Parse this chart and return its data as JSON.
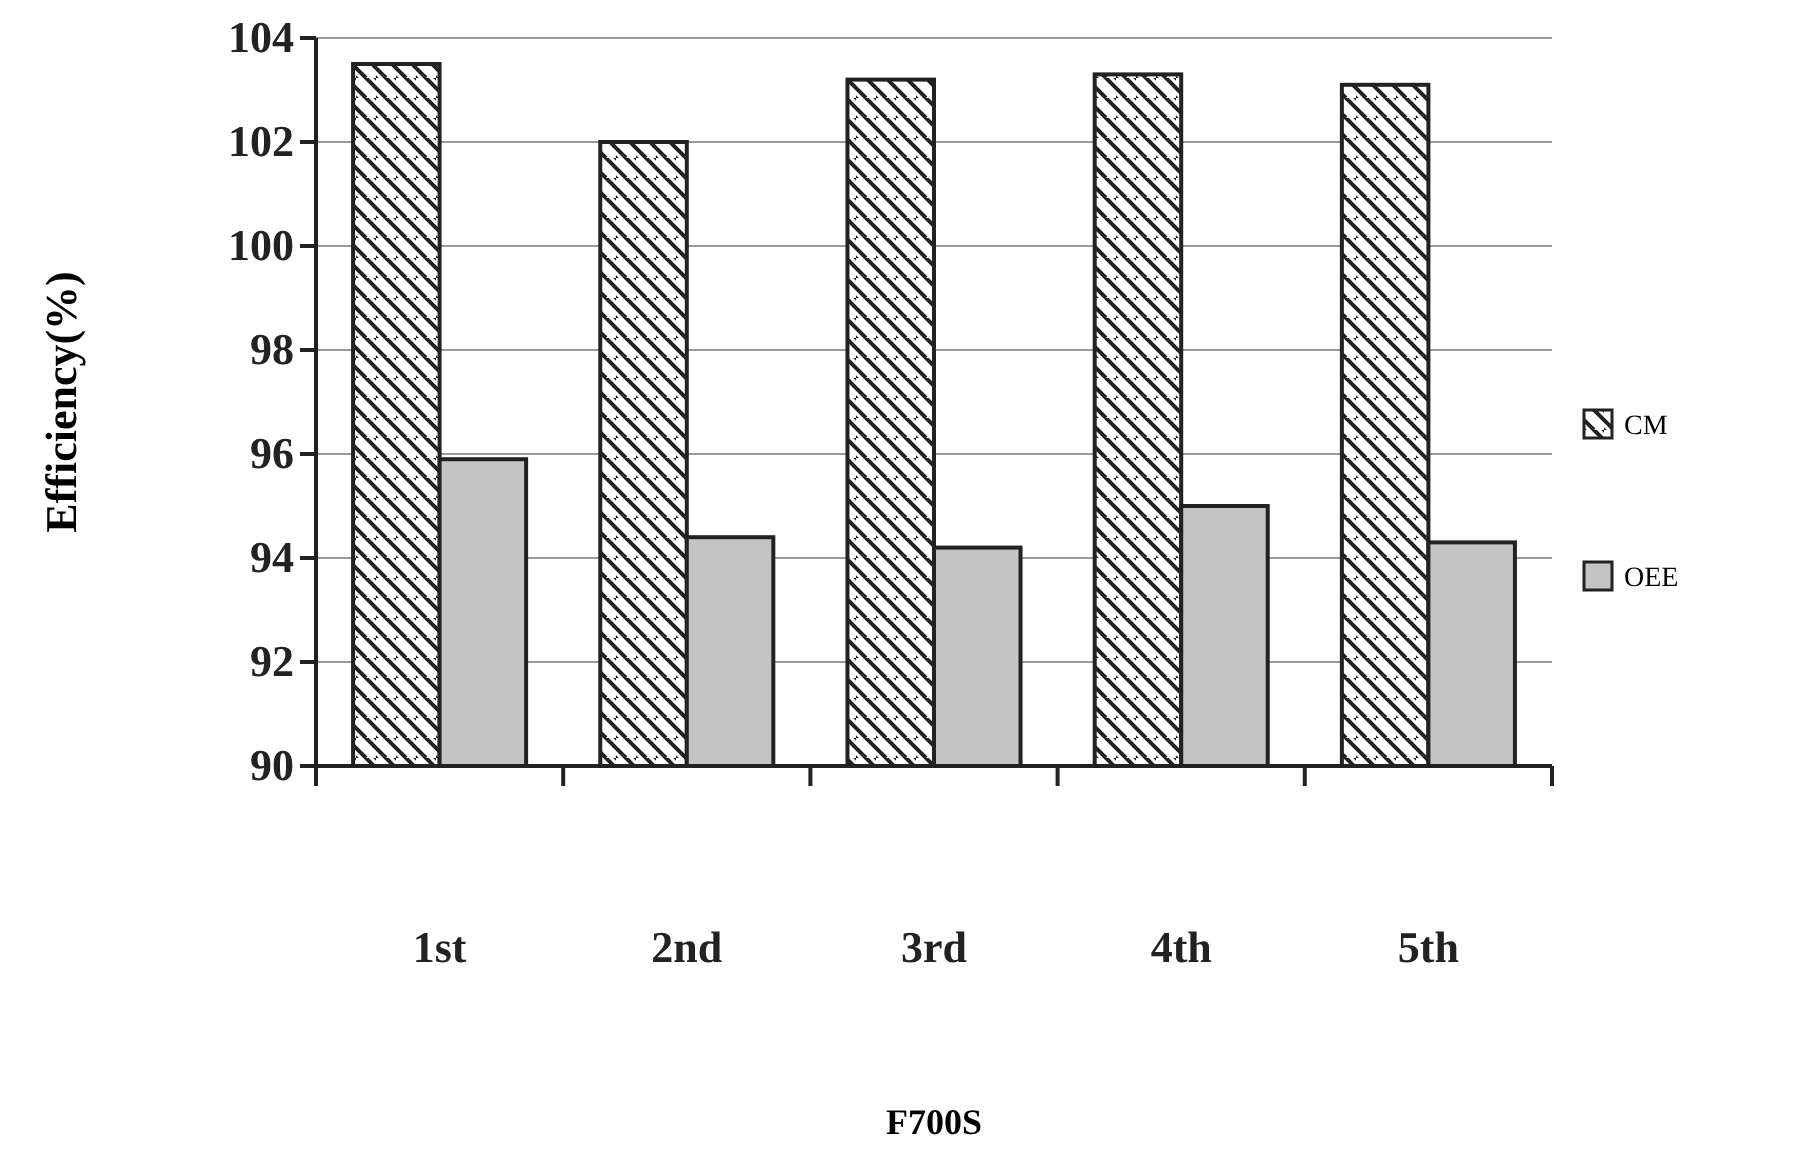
{
  "chart_data": {
    "type": "bar",
    "xlabel": "F700S",
    "ylabel": "Efficiency(%)",
    "categories": [
      "1st",
      "2nd",
      "3rd",
      "4th",
      "5th"
    ],
    "series": [
      {
        "name": "CM",
        "color": "#222222",
        "values": [
          103.5,
          102.0,
          103.2,
          103.3,
          103.1
        ]
      },
      {
        "name": "OEE",
        "color": "#c4c4c4",
        "values": [
          95.9,
          94.4,
          94.2,
          95.0,
          94.3
        ]
      }
    ],
    "ylim": [
      90,
      104
    ],
    "yticks": [
      90,
      92,
      94,
      96,
      98,
      100,
      102,
      104
    ],
    "grid": "y",
    "legend": "right"
  }
}
